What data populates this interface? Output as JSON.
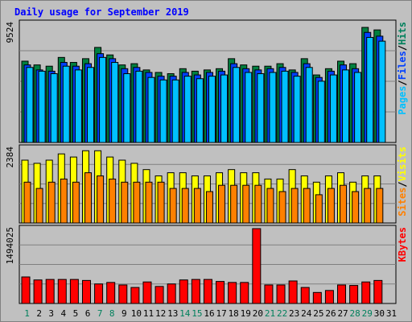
{
  "chart_data": {
    "type": "bar",
    "title": "Daily usage for September 2019",
    "categories": [
      "1",
      "2",
      "3",
      "4",
      "5",
      "6",
      "7",
      "8",
      "9",
      "10",
      "11",
      "12",
      "13",
      "14",
      "15",
      "16",
      "17",
      "18",
      "19",
      "20",
      "21",
      "22",
      "23",
      "24",
      "25",
      "26",
      "27",
      "28",
      "29",
      "30",
      "31"
    ],
    "weekend_days": [
      "1",
      "7",
      "8",
      "14",
      "15",
      "21",
      "22",
      "28",
      "29"
    ],
    "panels": [
      {
        "id": "hits_files",
        "ymax_label": "9524",
        "ylim": [
          0,
          9524
        ],
        "label_parts": [
          "Pages",
          "/",
          "Files",
          "/",
          "Hits"
        ],
        "label_colors": [
          "#00c0ff",
          "#000000",
          "#0040ff",
          "#000000",
          "#00805c"
        ],
        "series": [
          {
            "name": "Hits",
            "color": "#008040",
            "values": [
              6500,
              6200,
              6100,
              6800,
              6400,
              6700,
              7600,
              7000,
              6200,
              6300,
              5800,
              5600,
              5500,
              5900,
              5700,
              5800,
              5900,
              6700,
              6200,
              6100,
              6100,
              6300,
              5800,
              6700,
              5400,
              5900,
              6500,
              6300,
              9200,
              9000,
              null
            ]
          },
          {
            "name": "Files",
            "color": "#0040ff",
            "values": [
              6200,
              5800,
              5700,
              6400,
              6100,
              6300,
              7100,
              6700,
              5900,
              6000,
              5600,
              5300,
              5300,
              5600,
              5400,
              5600,
              5700,
              6300,
              5900,
              5800,
              5900,
              6000,
              5600,
              6300,
              5200,
              5700,
              6200,
              5900,
              8800,
              8500,
              null
            ]
          },
          {
            "name": "Pages",
            "color": "#00c0ff",
            "values": [
              6000,
              5700,
              5500,
              6100,
              5800,
              6000,
              6800,
              6400,
              5500,
              5700,
              5200,
              5000,
              5000,
              5300,
              5100,
              5300,
              5400,
              6000,
              5600,
              5500,
              5600,
              5700,
              5300,
              6000,
              4900,
              5400,
              5800,
              5600,
              8400,
              8100,
              null
            ]
          }
        ]
      },
      {
        "id": "sites_visits",
        "ymax_label": "2384",
        "ylim": [
          0,
          2384
        ],
        "label_parts": [
          "Sites",
          "/",
          "Visits"
        ],
        "label_colors": [
          "#ff8000",
          "#000000",
          "#ffff00"
        ],
        "series": [
          {
            "name": "Visits",
            "color": "#ffff00",
            "values": [
              2000,
              1900,
              2000,
              2200,
              2100,
              2300,
              2300,
              2100,
              2000,
              1900,
              1700,
              1500,
              1600,
              1600,
              1500,
              1500,
              1600,
              1700,
              1600,
              1600,
              1400,
              1400,
              1700,
              1500,
              1300,
              1500,
              1600,
              1300,
              1500,
              1500,
              null
            ]
          },
          {
            "name": "Sites",
            "color": "#ff8000",
            "values": [
              1300,
              1100,
              1300,
              1400,
              1300,
              1600,
              1500,
              1400,
              1300,
              1300,
              1300,
              1300,
              1100,
              1100,
              1100,
              1000,
              1200,
              1200,
              1200,
              1200,
              1100,
              1000,
              1100,
              1100,
              900,
              1100,
              1200,
              1000,
              1100,
              1100,
              null
            ]
          }
        ]
      },
      {
        "id": "kbytes",
        "ymax_label": "1494025",
        "ylim": [
          0,
          1494025
        ],
        "label_parts": [
          "KBytes"
        ],
        "label_colors": [
          "#ff0000"
        ],
        "series": [
          {
            "name": "KBytes",
            "color": "#ff0000",
            "values": [
              530000,
              470000,
              480000,
              480000,
              480000,
              460000,
              390000,
              420000,
              370000,
              320000,
              430000,
              340000,
              390000,
              470000,
              480000,
              480000,
              440000,
              420000,
              420000,
              1494025,
              370000,
              370000,
              450000,
              320000,
              220000,
              260000,
              370000,
              360000,
              430000,
              460000,
              null
            ]
          }
        ]
      }
    ]
  }
}
